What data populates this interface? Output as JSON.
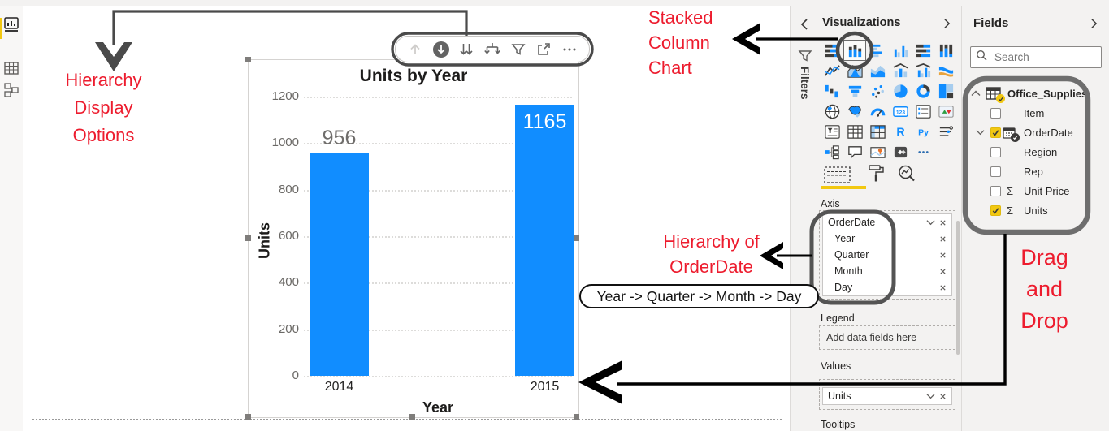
{
  "sidebar": {
    "icons": [
      {
        "name": "report-view",
        "selected": true
      },
      {
        "name": "data-view",
        "selected": false
      },
      {
        "name": "model-view",
        "selected": false
      }
    ]
  },
  "chart_data": {
    "type": "bar",
    "title": "Units by Year",
    "categories": [
      "2014",
      "2015"
    ],
    "values": [
      956,
      1165
    ],
    "value_label_inside": [
      false,
      true
    ],
    "xlabel": "Year",
    "ylabel": "Units",
    "ylim": [
      0,
      1200
    ],
    "yticks": [
      0,
      200,
      400,
      600,
      800,
      1000,
      1200
    ],
    "grid": "dotted-horizontal",
    "legend": "none",
    "bar_color": "#118DFF"
  },
  "visual_toolbar": {
    "icons": [
      "drill-up",
      "drill-down",
      "go-to-next-level",
      "expand-all-down",
      "filter",
      "focus-mode",
      "more-options"
    ]
  },
  "filters_pane": {
    "label": "Filters"
  },
  "visualizations": {
    "title": "Visualizations",
    "gallery": [
      {
        "name": "stacked-bar-chart"
      },
      {
        "name": "stacked-column-chart",
        "selected": true
      },
      {
        "name": "clustered-bar-chart"
      },
      {
        "name": "clustered-column-chart"
      },
      {
        "name": "hundred-percent-stacked-bar-chart"
      },
      {
        "name": "hundred-percent-stacked-column-chart"
      },
      {
        "name": "line-chart"
      },
      {
        "name": "area-chart"
      },
      {
        "name": "stacked-area-chart"
      },
      {
        "name": "line-and-stacked-column-chart"
      },
      {
        "name": "line-and-clustered-column-chart"
      },
      {
        "name": "ribbon-chart"
      },
      {
        "name": "waterfall-chart"
      },
      {
        "name": "funnel-chart"
      },
      {
        "name": "scatter-chart"
      },
      {
        "name": "pie-chart"
      },
      {
        "name": "donut-chart"
      },
      {
        "name": "treemap"
      },
      {
        "name": "map"
      },
      {
        "name": "filled-map"
      },
      {
        "name": "gauge"
      },
      {
        "name": "card"
      },
      {
        "name": "multi-row-card"
      },
      {
        "name": "kpi"
      },
      {
        "name": "slicer"
      },
      {
        "name": "table"
      },
      {
        "name": "matrix"
      },
      {
        "name": "r-script-visual"
      },
      {
        "name": "python-visual"
      },
      {
        "name": "paginated-report"
      },
      {
        "name": "decomposition-tree"
      },
      {
        "name": "q-and-a-visual"
      },
      {
        "name": "arcgis-map"
      },
      {
        "name": "power-apps-visual"
      },
      {
        "name": "more-visuals"
      }
    ],
    "tabs": [
      "fields",
      "format",
      "analytics"
    ],
    "sections": {
      "axis_label": "Axis",
      "legend_label": "Legend",
      "legend_placeholder": "Add data fields here",
      "values_label": "Values",
      "tooltips_label": "Tooltips"
    },
    "axis_fields": [
      {
        "label": "OrderDate",
        "has_dropdown": true,
        "removable": true
      },
      {
        "label": "Year",
        "removable": true
      },
      {
        "label": "Quarter",
        "removable": true
      },
      {
        "label": "Month",
        "removable": true
      },
      {
        "label": "Day",
        "removable": true
      }
    ],
    "values_fields": [
      {
        "label": "Units",
        "has_dropdown": true,
        "removable": true
      }
    ]
  },
  "fields_pane": {
    "title": "Fields",
    "search_placeholder": "Search",
    "table": {
      "name": "Office_Supplies",
      "checked": true,
      "expanded": true,
      "fields": [
        {
          "label": "Item",
          "checked": false
        },
        {
          "label": "OrderDate",
          "checked": true,
          "expandable": true,
          "icon": "date-hierarchy"
        },
        {
          "label": "Region",
          "checked": false
        },
        {
          "label": "Rep",
          "checked": false
        },
        {
          "label": "Unit Price",
          "checked": false,
          "aggregate": true
        },
        {
          "label": "Units",
          "checked": true,
          "aggregate": true
        }
      ]
    }
  },
  "annotations": {
    "hierarchy_display_options": "Hierarchy Display Options",
    "stacked_column_chart": "Stacked Column Chart",
    "hierarchy_of_orderdate": "Hierarchy of OrderDate",
    "drag_and_drop": "Drag and Drop",
    "hierarchy_path_label": "Year -> Quarter -> Month -> Day"
  },
  "colors": {
    "bar_blue": "#118DFF",
    "power_bi_yellow": "#F2C811",
    "annotation_red": "#ed1c2e",
    "annotation_gray": "#4a4a4a"
  }
}
